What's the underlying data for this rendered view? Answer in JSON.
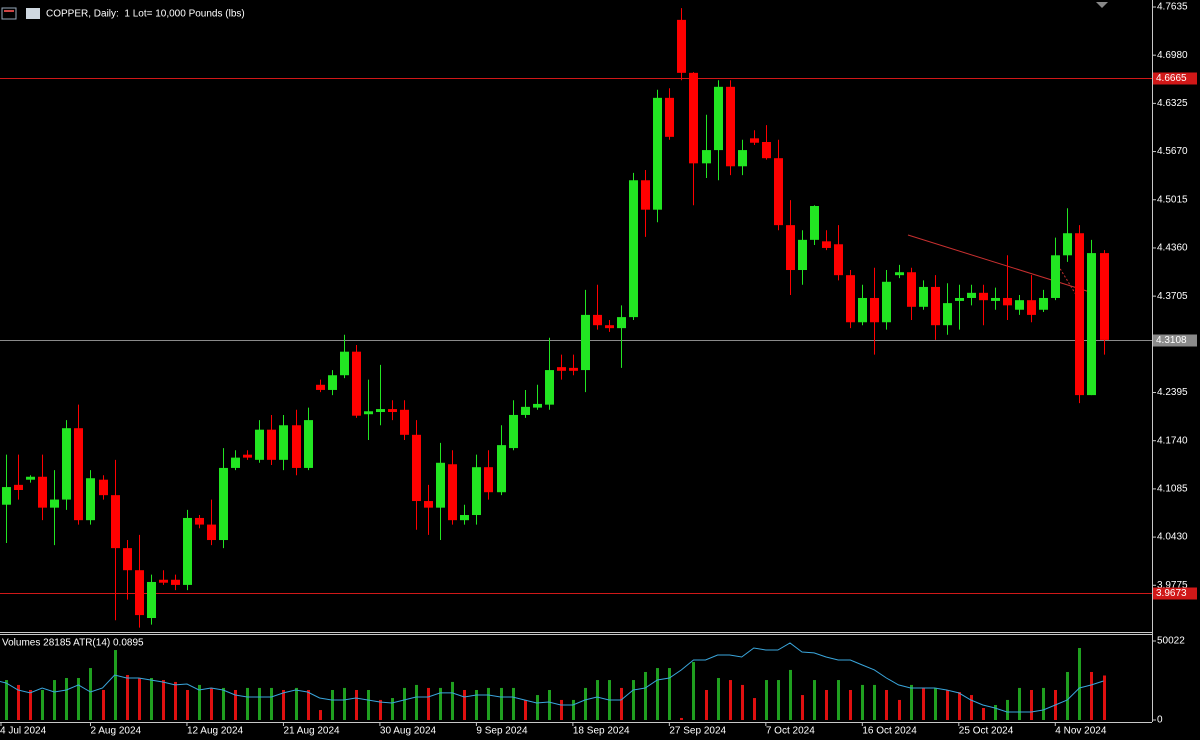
{
  "chart_data": {
    "type": "candlestick",
    "title": "COPPER, Daily:  1 Lot= 10,000 Pounds (lbs)",
    "categories": [
      "4 Jul 2024",
      null,
      null,
      null,
      null,
      null,
      null,
      null,
      "2 Aug 2024",
      null,
      null,
      null,
      null,
      null,
      null,
      null,
      "12 Aug 2024",
      null,
      null,
      null,
      null,
      null,
      null,
      null,
      "21 Aug 2024",
      null,
      null,
      null,
      null,
      null,
      null,
      null,
      "30 Aug 2024",
      null,
      null,
      null,
      null,
      null,
      null,
      null,
      "9 Sep 2024",
      null,
      null,
      null,
      null,
      null,
      null,
      null,
      "18 Sep 2024",
      null,
      null,
      null,
      null,
      null,
      null,
      null,
      "27 Sep 2024",
      null,
      null,
      null,
      null,
      null,
      null,
      null,
      "7 Oct 2024",
      null,
      null,
      null,
      null,
      null,
      null,
      null,
      "16 Oct 2024",
      null,
      null,
      null,
      null,
      null,
      null,
      null,
      "25 Oct 2024",
      null,
      null,
      null,
      null,
      null,
      null,
      null,
      "4 Nov 2024",
      null,
      null,
      null,
      null
    ],
    "open": [
      4.1,
      4.087,
      4.114,
      4.121,
      4.125,
      4.083,
      4.094,
      4.191,
      4.066,
      4.121,
      4.1,
      4.028,
      3.998,
      3.933,
      3.985,
      3.985,
      3.978,
      4.069,
      4.06,
      4.039,
      4.137,
      4.155,
      4.148,
      4.189,
      4.148,
      4.195,
      4.137,
      4.25,
      4.243,
      4.263,
      4.295,
      4.21,
      4.213,
      4.217,
      4.216,
      4.182,
      4.092,
      4.083,
      4.142,
      4.066,
      4.073,
      4.138,
      4.104,
      4.164,
      4.209,
      4.219,
      4.223,
      4.274,
      4.273,
      4.27,
      4.345,
      4.331,
      4.327,
      4.342,
      4.528,
      4.488,
      4.64,
      4.746,
      4.674,
      4.551,
      4.569,
      4.655,
      4.547,
      4.585,
      4.58,
      4.558,
      4.467,
      4.406,
      4.447,
      4.445,
      4.441,
      4.399,
      4.335,
      4.368,
      4.335,
      4.399,
      4.403,
      4.356,
      4.383,
      4.331,
      4.364,
      4.368,
      4.375,
      4.364,
      4.368,
      4.352,
      4.365,
      4.352,
      4.368,
      4.426,
      4.456,
      4.236,
      4.429
    ],
    "high": [
      4.155,
      4.155,
      4.155,
      4.127,
      4.155,
      4.134,
      4.202,
      4.223,
      4.134,
      4.127,
      4.148,
      4.039,
      4.046,
      3.992,
      3.998,
      3.992,
      4.08,
      4.073,
      4.094,
      4.164,
      4.161,
      4.161,
      4.202,
      4.209,
      4.209,
      4.216,
      4.219,
      4.257,
      4.27,
      4.318,
      4.304,
      4.257,
      4.277,
      4.229,
      4.229,
      4.202,
      4.114,
      4.171,
      4.161,
      4.087,
      4.155,
      4.161,
      4.195,
      4.229,
      4.243,
      4.25,
      4.314,
      4.291,
      4.291,
      4.379,
      4.386,
      4.338,
      4.358,
      4.538,
      4.542,
      4.651,
      4.653,
      4.762,
      4.675,
      4.617,
      4.664,
      4.664,
      4.583,
      4.596,
      4.603,
      4.583,
      4.501,
      4.46,
      4.494,
      4.46,
      4.467,
      4.406,
      4.386,
      4.409,
      4.406,
      4.413,
      4.409,
      4.392,
      4.399,
      4.388,
      4.386,
      4.386,
      4.386,
      4.382,
      4.426,
      4.372,
      4.399,
      4.379,
      4.45,
      4.49,
      4.467,
      4.447,
      4.433
    ],
    "low": [
      4.039,
      4.035,
      4.094,
      4.117,
      4.066,
      4.032,
      4.08,
      4.06,
      4.06,
      4.094,
      3.93,
      3.958,
      3.92,
      3.924,
      3.978,
      3.971,
      3.971,
      4.055,
      4.032,
      4.028,
      4.134,
      4.148,
      4.144,
      4.141,
      4.134,
      4.127,
      4.134,
      4.24,
      4.236,
      4.259,
      4.205,
      4.175,
      4.195,
      4.202,
      4.175,
      4.053,
      4.046,
      4.039,
      4.06,
      4.06,
      4.06,
      4.094,
      4.1,
      4.161,
      4.205,
      4.216,
      4.216,
      4.257,
      4.263,
      4.24,
      4.325,
      4.322,
      4.273,
      4.338,
      4.451,
      4.471,
      4.583,
      4.664,
      4.494,
      4.531,
      4.528,
      4.535,
      4.535,
      4.576,
      4.556,
      4.46,
      4.372,
      4.386,
      4.44,
      4.433,
      4.392,
      4.327,
      4.331,
      4.291,
      4.325,
      4.395,
      4.338,
      4.352,
      4.311,
      4.318,
      4.325,
      4.358,
      4.331,
      4.352,
      4.338,
      4.345,
      4.335,
      4.349,
      4.365,
      4.417,
      4.225,
      4.236,
      4.291
    ],
    "close": [
      4.121,
      4.111,
      4.107,
      4.125,
      4.083,
      4.094,
      4.191,
      4.066,
      4.123,
      4.1,
      4.028,
      3.998,
      3.937,
      3.982,
      3.981,
      3.978,
      4.069,
      4.06,
      4.039,
      4.137,
      4.151,
      4.151,
      4.189,
      4.148,
      4.195,
      4.137,
      4.202,
      4.243,
      4.263,
      4.295,
      4.208,
      4.214,
      4.217,
      4.213,
      4.182,
      4.092,
      4.083,
      4.144,
      4.066,
      4.073,
      4.138,
      4.104,
      4.168,
      4.209,
      4.22,
      4.224,
      4.27,
      4.269,
      4.269,
      4.345,
      4.331,
      4.327,
      4.342,
      4.528,
      4.488,
      4.64,
      4.587,
      4.674,
      4.551,
      4.569,
      4.655,
      4.547,
      4.569,
      4.579,
      4.558,
      4.467,
      4.406,
      4.447,
      4.493,
      4.436,
      4.399,
      4.335,
      4.368,
      4.335,
      4.39,
      4.403,
      4.356,
      4.383,
      4.331,
      4.361,
      4.368,
      4.375,
      4.365,
      4.368,
      4.358,
      4.365,
      4.345,
      4.368,
      4.426,
      4.456,
      4.236,
      4.429,
      4.311
    ],
    "up_color": "#22e622",
    "down_color": "#ff0000",
    "ylim": [
      3.914,
      4.773
    ],
    "yticks": [
      4.7635,
      {
        "value": 4.698,
        "label": "4.6980"
      },
      4.6325,
      {
        "value": 4.567,
        "label": "4.5670"
      },
      4.5015,
      {
        "value": 4.436,
        "label": "4.4360"
      },
      4.3705,
      4.2395,
      {
        "value": 4.174,
        "label": "4.1740"
      },
      4.1085,
      {
        "value": 4.043,
        "label": "4.0430"
      },
      3.9775
    ],
    "hlines": [
      {
        "value": 4.6665,
        "color": "#d01818"
      },
      {
        "value": 4.3108,
        "color": "#8a8a8a"
      },
      {
        "value": 3.9673,
        "color": "#d01818"
      }
    ],
    "volume": {
      "label": "Volumes 28185 ATR(14) 0.0895",
      "values": [
        25300,
        25300,
        22200,
        19000,
        19000,
        25300,
        26600,
        26600,
        32900,
        19000,
        44300,
        28500,
        26600,
        26600,
        25300,
        24100,
        19000,
        22200,
        20300,
        20300,
        19000,
        20300,
        20300,
        20300,
        19000,
        20300,
        19000,
        6300,
        19000,
        20300,
        19000,
        19000,
        12700,
        13900,
        20300,
        22200,
        20300,
        20300,
        24100,
        19000,
        19000,
        20300,
        20300,
        20300,
        12700,
        15800,
        19000,
        12700,
        12700,
        20300,
        25300,
        25300,
        20300,
        25300,
        30400,
        32900,
        32900,
        1300,
        36700,
        19000,
        26600,
        25300,
        22200,
        13900,
        25300,
        25300,
        31700,
        15800,
        25300,
        19000,
        25300,
        19000,
        22200,
        22200,
        19000,
        12700,
        22200,
        20300,
        20300,
        19000,
        17700,
        15800,
        7600,
        9500,
        12700,
        20300,
        19000,
        20300,
        19000,
        30400,
        45600,
        30400,
        28185
      ],
      "ylim": [
        0,
        50022
      ],
      "yticks": [
        50022,
        0
      ],
      "up_color": "#1f9f1f",
      "down_color": "#e01010",
      "atr": {
        "color": "#3aa6dc",
        "lim": [
          0.05,
          0.13
        ],
        "values": [
          0.0905,
          0.0875,
          0.0804,
          0.0774,
          0.0824,
          0.0784,
          0.0804,
          0.0855,
          0.0784,
          0.0824,
          0.0956,
          0.0925,
          0.0925,
          0.0905,
          0.0885,
          0.0855,
          0.0865,
          0.0804,
          0.0824,
          0.0804,
          0.0753,
          0.0733,
          0.0733,
          0.0733,
          0.0774,
          0.0804,
          0.0784,
          0.0723,
          0.0703,
          0.0703,
          0.0723,
          0.0703,
          0.0682,
          0.0672,
          0.0703,
          0.0733,
          0.0733,
          0.0774,
          0.0774,
          0.0733,
          0.0753,
          0.0753,
          0.0733,
          0.0733,
          0.0703,
          0.0672,
          0.0682,
          0.0652,
          0.0652,
          0.0703,
          0.0733,
          0.0703,
          0.0703,
          0.0804,
          0.0824,
          0.0905,
          0.0925,
          0.1007,
          0.1108,
          0.1108,
          0.1158,
          0.1158,
          0.1138,
          0.1229,
          0.1209,
          0.1209,
          0.128,
          0.1189,
          0.1179,
          0.1138,
          0.1108,
          0.1108,
          0.1057,
          0.1007,
          0.0925,
          0.0855,
          0.0824,
          0.0824,
          0.0824,
          0.0804,
          0.0774,
          0.0703,
          0.0652,
          0.0622,
          0.0581,
          0.0581,
          0.0581,
          0.0601,
          0.0652,
          0.0703,
          0.0824,
          0.0855,
          0.0895
        ]
      }
    }
  }
}
